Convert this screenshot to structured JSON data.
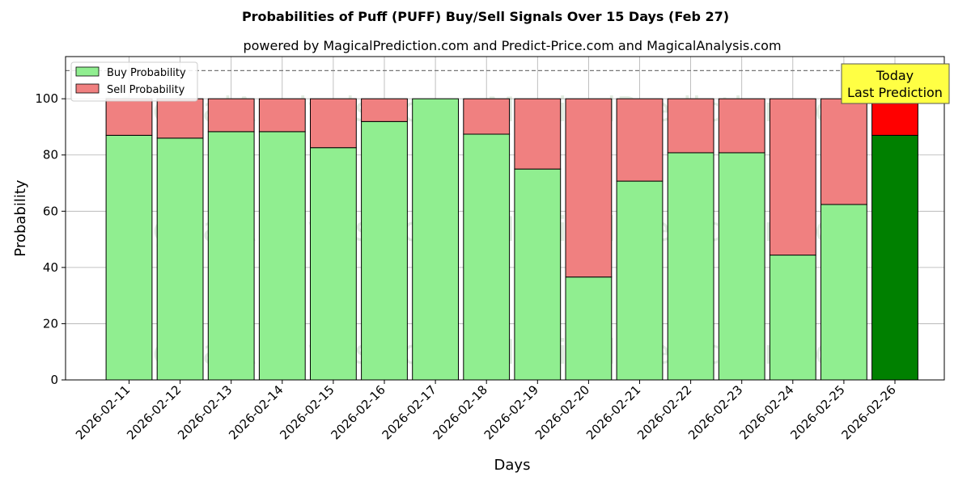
{
  "chart_data": {
    "type": "bar",
    "stacked": true,
    "title": "Probabilities of Puff (PUFF) Buy/Sell Signals Over 15 Days (Feb 27)",
    "subtitle": "powered by MagicalPrediction.com and Predict-Price.com and MagicalAnalysis.com",
    "xlabel": "Days",
    "ylabel": "Probability",
    "ylim": [
      0,
      115
    ],
    "yticks": [
      0,
      20,
      40,
      60,
      80,
      100
    ],
    "grid": true,
    "legend_position": "top-left",
    "reference_line": 110,
    "categories": [
      "2026-02-11",
      "2026-02-12",
      "2026-02-13",
      "2026-02-14",
      "2026-02-15",
      "2026-02-16",
      "2026-02-17",
      "2026-02-18",
      "2026-02-19",
      "2026-02-20",
      "2026-02-21",
      "2026-02-22",
      "2026-02-23",
      "2026-02-24",
      "2026-02-25",
      "2026-02-26"
    ],
    "series": [
      {
        "name": "Buy Probability",
        "color": "#90EE90",
        "highlight_color": "#008000",
        "values": [
          87,
          86,
          88.3,
          88.3,
          82.6,
          91.9,
          100,
          87.4,
          75,
          36.6,
          70.7,
          80.8,
          80.8,
          44.4,
          62.4,
          87
        ]
      },
      {
        "name": "Sell Probability",
        "color": "#F08080",
        "highlight_color": "#FF0000",
        "values": [
          13,
          14,
          11.7,
          11.7,
          17.4,
          8.1,
          0,
          12.6,
          25,
          63.4,
          29.3,
          19.2,
          19.2,
          55.6,
          37.6,
          13
        ]
      }
    ],
    "highlight_index": 15,
    "annotation": {
      "line1": "Today",
      "line2": "Last Prediction",
      "color": "#FFFF44"
    },
    "watermarks": [
      "MagicalAnalysis.com",
      "MagicalPrediction.com"
    ]
  }
}
